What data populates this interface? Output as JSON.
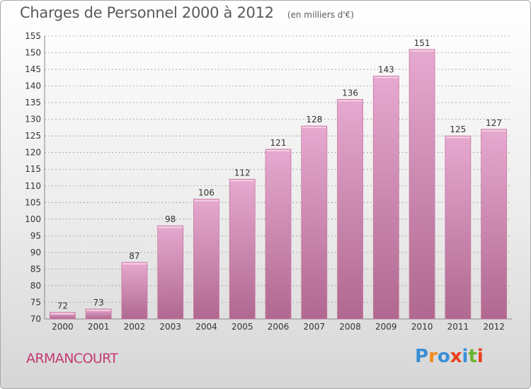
{
  "header": {
    "title": "Charges de Personnel 2000 à 2012",
    "subtitle": "(en milliers d'€)"
  },
  "footer": {
    "commune": "ARMANCOURT",
    "brand": "Proxiti",
    "brand_colors": [
      "#3a8fd6",
      "#f28a1e",
      "#3a8fd6",
      "#e8401c",
      "#3a8fd6",
      "#6ab42d",
      "#e8401c"
    ]
  },
  "colors": {
    "bar_top": "#e6a9cf",
    "bar_bottom": "#b06890",
    "bar_edge": "#c9779f",
    "grid": "#9a9a9a",
    "axis_text": "#333333"
  },
  "chart_data": {
    "type": "bar",
    "title": "Charges de Personnel 2000 à 2012",
    "subtitle": "(en milliers d'€)",
    "categories": [
      "2000",
      "2001",
      "2002",
      "2003",
      "2004",
      "2005",
      "2006",
      "2007",
      "2008",
      "2009",
      "2010",
      "2011",
      "2012"
    ],
    "values": [
      72,
      73,
      87,
      98,
      106,
      112,
      121,
      128,
      136,
      143,
      151,
      125,
      127
    ],
    "ylim": [
      70,
      155
    ],
    "yticks": [
      70,
      75,
      80,
      85,
      90,
      95,
      100,
      105,
      110,
      115,
      120,
      125,
      130,
      135,
      140,
      145,
      150,
      155
    ],
    "grid": "horizontal dashed",
    "data_labels": true
  }
}
